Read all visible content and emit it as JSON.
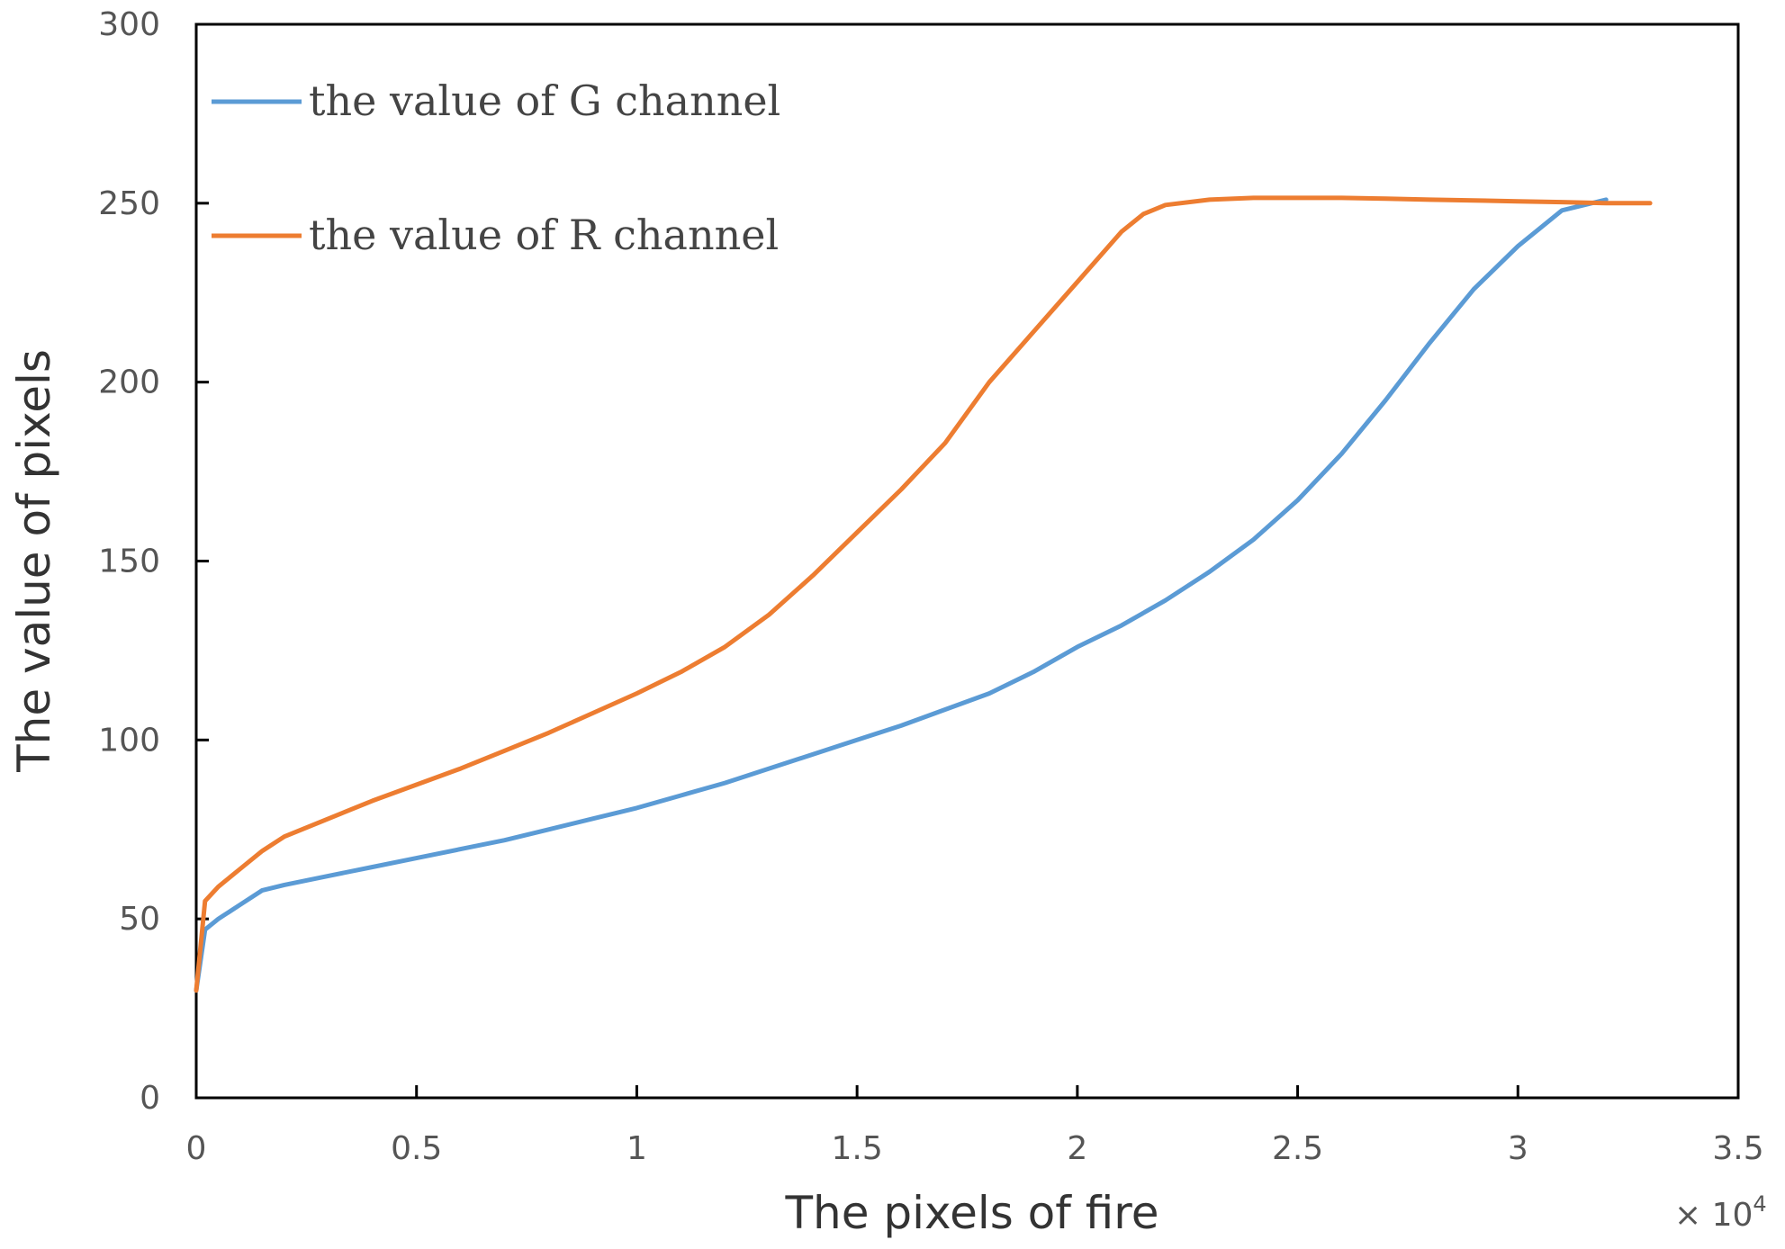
{
  "chart_data": {
    "type": "line",
    "xlabel": "The pixels of fire",
    "ylabel": "The value of pixels",
    "x_multiplier": {
      "prefix": "× 10",
      "exponent": "4"
    },
    "xlim": [
      0,
      3.5
    ],
    "ylim": [
      0,
      300
    ],
    "x_ticks": [
      "0",
      "0.5",
      "1",
      "1.5",
      "2",
      "2.5",
      "3",
      "3.5"
    ],
    "y_ticks": [
      "0",
      "50",
      "100",
      "150",
      "200",
      "250",
      "300"
    ],
    "grid": false,
    "legend_position": "top-left",
    "series": [
      {
        "name": "the value of G channel",
        "color": "#5b9bd5",
        "x": [
          0,
          0.02,
          0.05,
          0.1,
          0.15,
          0.2,
          0.3,
          0.4,
          0.5,
          0.6,
          0.7,
          0.8,
          0.9,
          1.0,
          1.1,
          1.2,
          1.3,
          1.4,
          1.5,
          1.6,
          1.7,
          1.8,
          1.9,
          2.0,
          2.1,
          2.2,
          2.3,
          2.4,
          2.5,
          2.6,
          2.7,
          2.8,
          2.9,
          3.0,
          3.1,
          3.2
        ],
        "y": [
          30,
          47,
          50,
          54,
          58,
          59.5,
          62,
          64.5,
          67,
          69.5,
          72,
          75,
          78,
          81,
          84.5,
          88,
          92,
          96,
          100,
          104,
          108.5,
          113,
          119,
          126,
          132,
          139,
          147,
          156,
          167,
          180,
          195,
          211,
          226,
          238,
          248,
          251
        ]
      },
      {
        "name": "the value of R channel",
        "color": "#ed7d31",
        "x": [
          0,
          0.02,
          0.05,
          0.1,
          0.15,
          0.2,
          0.3,
          0.4,
          0.5,
          0.6,
          0.7,
          0.8,
          0.9,
          1.0,
          1.1,
          1.2,
          1.3,
          1.4,
          1.5,
          1.6,
          1.7,
          1.8,
          1.9,
          2.0,
          2.1,
          2.15,
          2.2,
          2.3,
          2.4,
          2.5,
          2.6,
          2.7,
          2.8,
          2.9,
          3.0,
          3.1,
          3.2,
          3.3
        ],
        "y": [
          30,
          55,
          59,
          64,
          69,
          73,
          78,
          83,
          87.5,
          92,
          97,
          102,
          107.5,
          113,
          119,
          126,
          135,
          146,
          158,
          170,
          183,
          200,
          214,
          228,
          242,
          247,
          249.5,
          251,
          251.5,
          251.5,
          251.5,
          251.3,
          251,
          250.8,
          250.5,
          250.3,
          250,
          250
        ]
      }
    ]
  }
}
